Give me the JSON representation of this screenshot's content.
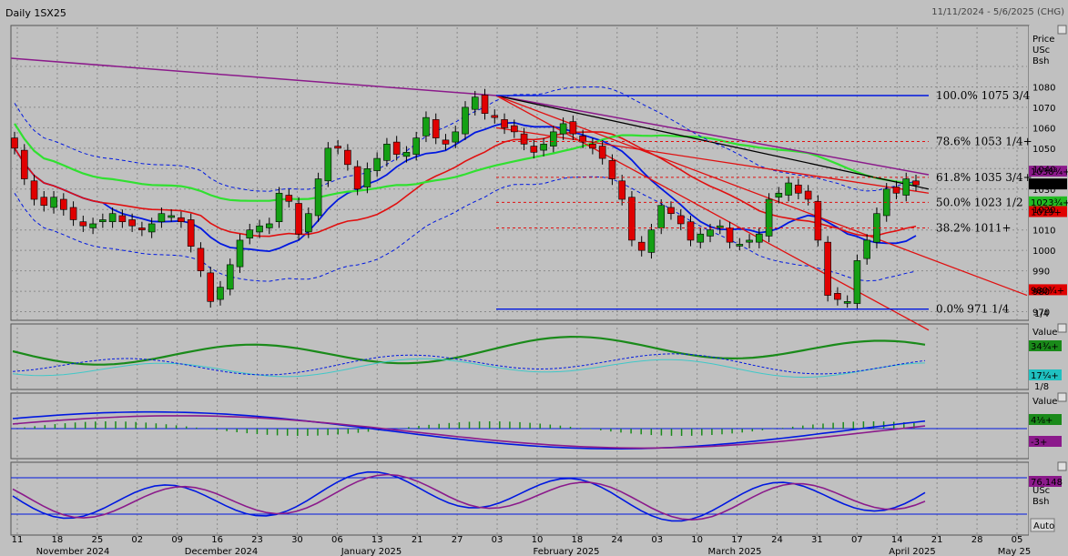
{
  "title": "Daily 1SX25",
  "date_range": "11/11/2024 - 5/6/2025 (CHG)",
  "price_panel_header": [
    "Price",
    "USc",
    "Bsh"
  ],
  "indicator_panel_header": [
    "Value"
  ],
  "stoch_panel_header": [
    "USc",
    "Bsh"
  ],
  "fraction_label": "1/4",
  "fraction_label_2": "1/8",
  "auto_button": "Auto",
  "chart_data": {
    "type": "candlestick",
    "price_axis": {
      "min": 960,
      "max": 1090,
      "ticks": [
        970,
        980,
        990,
        1000,
        1010,
        1020,
        1030,
        1040,
        1050,
        1060,
        1070,
        1080
      ]
    },
    "x_tick_labels": [
      "11",
      "18",
      "25",
      "02",
      "09",
      "16",
      "23",
      "30",
      "06",
      "13",
      "21",
      "27",
      "03",
      "10",
      "18",
      "24",
      "03",
      "10",
      "17",
      "24",
      "31",
      "07",
      "14",
      "21",
      "28",
      "05"
    ],
    "month_labels": [
      "November 2024",
      "December 2024",
      "January 2025",
      "February 2025",
      "March 2025",
      "April 2025",
      "May 25"
    ],
    "fib_levels": [
      {
        "label": "100.0%",
        "value_text": "1075 3/4",
        "value": 1075.75
      },
      {
        "label": "78.6%",
        "value_text": "1053 1/4+",
        "value": 1053.25
      },
      {
        "label": "61.8%",
        "value_text": "1035 3/4+",
        "value": 1035.75
      },
      {
        "label": "50.0%",
        "value_text": "1023 1/2",
        "value": 1023.5
      },
      {
        "label": "38.2%",
        "value_text": "1011+",
        "value": 1011
      },
      {
        "label": "0.0%",
        "value_text": "971 1/4",
        "value": 971.25
      }
    ],
    "price_tags": [
      {
        "text": "1038¾+",
        "value": 1038.75,
        "color": "#8b1a8b"
      },
      {
        "text": "1032½",
        "value": 1032.5,
        "color": "#000000"
      },
      {
        "text": "1023¾+",
        "value": 1023.75,
        "color": "#22bb22"
      },
      {
        "text": "1019+",
        "value": 1019,
        "color": "#e00000"
      },
      {
        "text": "980¾+",
        "value": 980.75,
        "color": "#e00000"
      }
    ],
    "indicator_tags": [
      {
        "text": "34¾+",
        "color": "#1a8a1a"
      },
      {
        "text": "17¼+",
        "color": "#20c0c0"
      }
    ],
    "macd_tags": [
      {
        "text": "4⅛+",
        "color": "#1a8a1a"
      },
      {
        "text": "-3+",
        "color": "#8b1a8b"
      }
    ],
    "stoch_tags": [
      {
        "text": "76.148",
        "color": "#8b1a8b"
      }
    ],
    "closes": [
      1050,
      1035,
      1025,
      1022,
      1026,
      1020,
      1015,
      1012,
      1013,
      1015,
      1018,
      1014,
      1012,
      1010,
      1013,
      1018,
      1017,
      1014,
      1002,
      990,
      975,
      982,
      993,
      1005,
      1010,
      1012,
      1013,
      1028,
      1024,
      1008,
      1018,
      1035,
      1050,
      1050,
      1042,
      1030,
      1040,
      1045,
      1052,
      1047,
      1048,
      1055,
      1065,
      1055,
      1052,
      1058,
      1070,
      1075,
      1067,
      1065,
      1060,
      1058,
      1052,
      1048,
      1052,
      1058,
      1062,
      1057,
      1053,
      1050,
      1045,
      1035,
      1025,
      1005,
      1000,
      1010,
      1022,
      1018,
      1013,
      1005,
      1008,
      1010,
      1012,
      1004,
      1003,
      1005,
      1008,
      1025,
      1028,
      1033,
      1028,
      1025,
      1005,
      978,
      976,
      975,
      995,
      1005,
      1018,
      1030,
      1028,
      1035,
      1032
    ]
  }
}
